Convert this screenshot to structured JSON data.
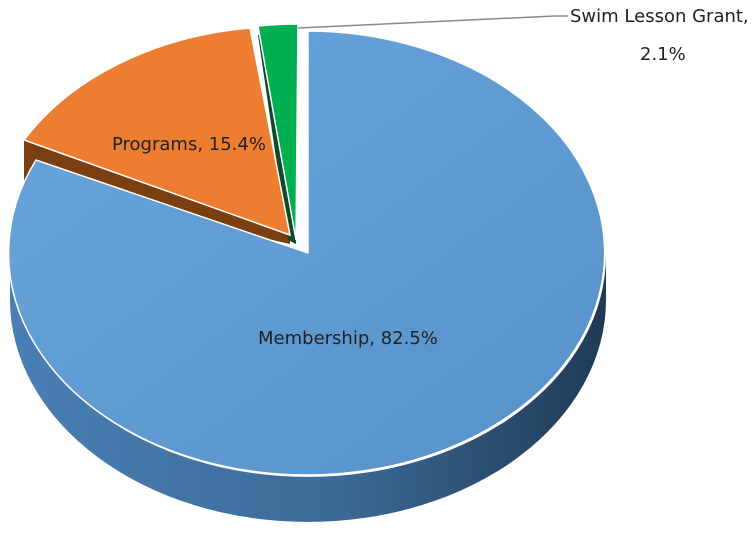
{
  "chart_data": {
    "type": "pie",
    "title": "",
    "slices": [
      {
        "label": "Membership",
        "value": 82.5,
        "data_label": "Membership, 82.5%",
        "color": "#5b9bd5"
      },
      {
        "label": "Programs",
        "value": 15.4,
        "data_label": "Programs, 15.4%",
        "color": "#ed7d31"
      },
      {
        "label": "Swim Lesson Grant",
        "value": 2.1,
        "data_label_line1": "Swim Lesson Grant,",
        "data_label_line2": "2.1%",
        "color": "#00b050"
      }
    ],
    "style": "3d-exploded"
  }
}
